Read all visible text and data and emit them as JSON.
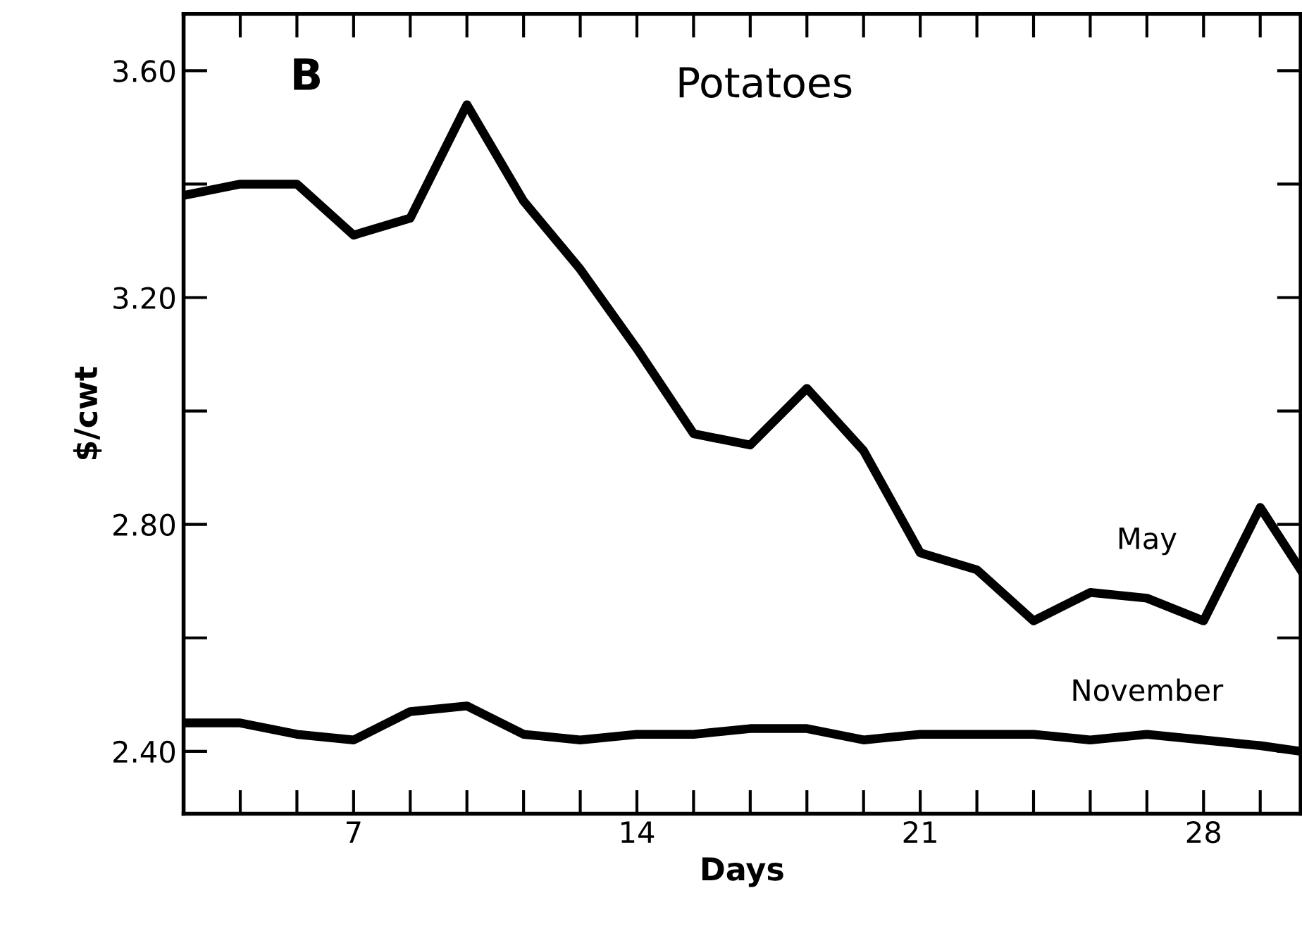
{
  "chart_data": {
    "type": "line",
    "xlabel": "Days",
    "ylabel": "$/cwt",
    "annotations": [
      "B",
      "Potatoes"
    ],
    "x": [
      2.8,
      4.2,
      5.6,
      7,
      8.4,
      9.8,
      11.2,
      12.6,
      14,
      15.4,
      16.8,
      18.2,
      19.6,
      21,
      22.4,
      23.8,
      25.2,
      26.6,
      28,
      29.4,
      30.4
    ],
    "series": [
      {
        "name": "May",
        "color": "#000000",
        "values": [
          3.38,
          3.4,
          3.4,
          3.31,
          3.34,
          3.54,
          3.37,
          3.25,
          3.11,
          2.96,
          2.94,
          3.04,
          2.93,
          2.75,
          2.72,
          2.63,
          2.68,
          2.67,
          2.63,
          2.83,
          2.72
        ]
      },
      {
        "name": "November",
        "color": "#000000",
        "values": [
          2.45,
          2.45,
          2.43,
          2.42,
          2.47,
          2.48,
          2.43,
          2.42,
          2.43,
          2.43,
          2.44,
          2.44,
          2.42,
          2.43,
          2.43,
          2.43,
          2.42,
          2.43,
          2.42,
          2.41,
          2.4
        ]
      }
    ],
    "xlim": [
      2.8,
      30.4
    ],
    "ylim": [
      2.29,
      3.7
    ],
    "xticks": [
      7,
      14,
      21,
      28
    ],
    "yticks": [
      {
        "value": 2.4,
        "label": "2.40"
      },
      {
        "value": 2.8,
        "label": "2.80"
      },
      {
        "value": 3.2,
        "label": "3.20"
      },
      {
        "value": 3.6,
        "label": "3.60"
      }
    ],
    "grid": false,
    "legend": false,
    "marker": "none",
    "line_style": "solid"
  }
}
